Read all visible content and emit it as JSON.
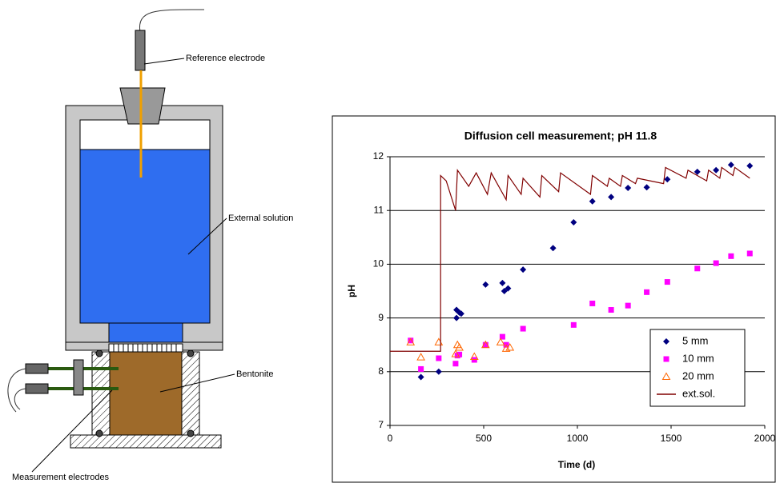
{
  "diagram": {
    "labels": [
      "Reference electrode",
      "External solution",
      "Bentonite",
      "Measurement electrodes"
    ]
  },
  "chart_data": {
    "type": "scatter",
    "title": "Diffusion cell measurement; pH 11.8",
    "x_label": "Time (d)",
    "y_label": "pH",
    "xlim": [
      0,
      2000
    ],
    "xticks": [
      0,
      500,
      1000,
      1500,
      2000
    ],
    "ylim": [
      7,
      12
    ],
    "yticks": [
      7,
      8,
      9,
      10,
      11,
      12
    ],
    "grid": true,
    "legend": "lower right",
    "series": [
      {
        "name": "5 mm",
        "color": "#000080",
        "marker": "diamond",
        "x": [
          165,
          260,
          355,
          355,
          370,
          380,
          510,
          600,
          610,
          630,
          710,
          870,
          980,
          1080,
          1180,
          1270,
          1370,
          1480,
          1640,
          1740,
          1820,
          1920
        ],
        "values": [
          7.9,
          8.0,
          9.0,
          9.15,
          9.1,
          9.08,
          9.62,
          9.65,
          9.5,
          9.55,
          9.9,
          10.3,
          10.78,
          11.17,
          11.25,
          11.42,
          11.43,
          11.58,
          11.72,
          11.75,
          11.85,
          11.83
        ]
      },
      {
        "name": "10 mm",
        "color": "#ff00ff",
        "marker": "square",
        "x": [
          110,
          165,
          260,
          350,
          360,
          370,
          450,
          510,
          600,
          620,
          710,
          980,
          1080,
          1180,
          1270,
          1370,
          1480,
          1640,
          1740,
          1820,
          1920
        ],
        "values": [
          8.58,
          8.05,
          8.25,
          8.15,
          8.3,
          8.32,
          8.22,
          8.5,
          8.65,
          8.5,
          8.8,
          8.87,
          9.27,
          9.15,
          9.23,
          9.48,
          9.67,
          9.92,
          10.02,
          10.15,
          10.2
        ]
      },
      {
        "name": "20 mm",
        "color": "#ff6600",
        "marker": "triangle",
        "x": [
          110,
          165,
          260,
          350,
          360,
          370,
          450,
          510,
          590,
          620,
          640
        ],
        "values": [
          8.55,
          8.27,
          8.55,
          8.33,
          8.5,
          8.45,
          8.28,
          8.5,
          8.55,
          8.43,
          8.45
        ]
      },
      {
        "name": "ext.sol.",
        "color": "#800000",
        "marker": "line",
        "x": [
          0,
          270,
          270,
          300,
          350,
          360,
          420,
          460,
          520,
          540,
          620,
          630,
          700,
          710,
          800,
          810,
          900,
          910,
          1070,
          1080,
          1160,
          1170,
          1230,
          1240,
          1310,
          1320,
          1460,
          1470,
          1580,
          1590,
          1690,
          1700,
          1760,
          1770,
          1830,
          1840,
          1920
        ],
        "values": [
          8.38,
          8.38,
          11.65,
          11.55,
          11.0,
          11.75,
          11.45,
          11.7,
          11.3,
          11.7,
          11.2,
          11.65,
          11.3,
          11.6,
          11.25,
          11.65,
          11.35,
          11.7,
          11.3,
          11.65,
          11.45,
          11.6,
          11.45,
          11.65,
          11.5,
          11.6,
          11.5,
          11.8,
          11.6,
          11.75,
          11.55,
          11.75,
          11.6,
          11.8,
          11.65,
          11.8,
          11.6
        ]
      }
    ]
  }
}
